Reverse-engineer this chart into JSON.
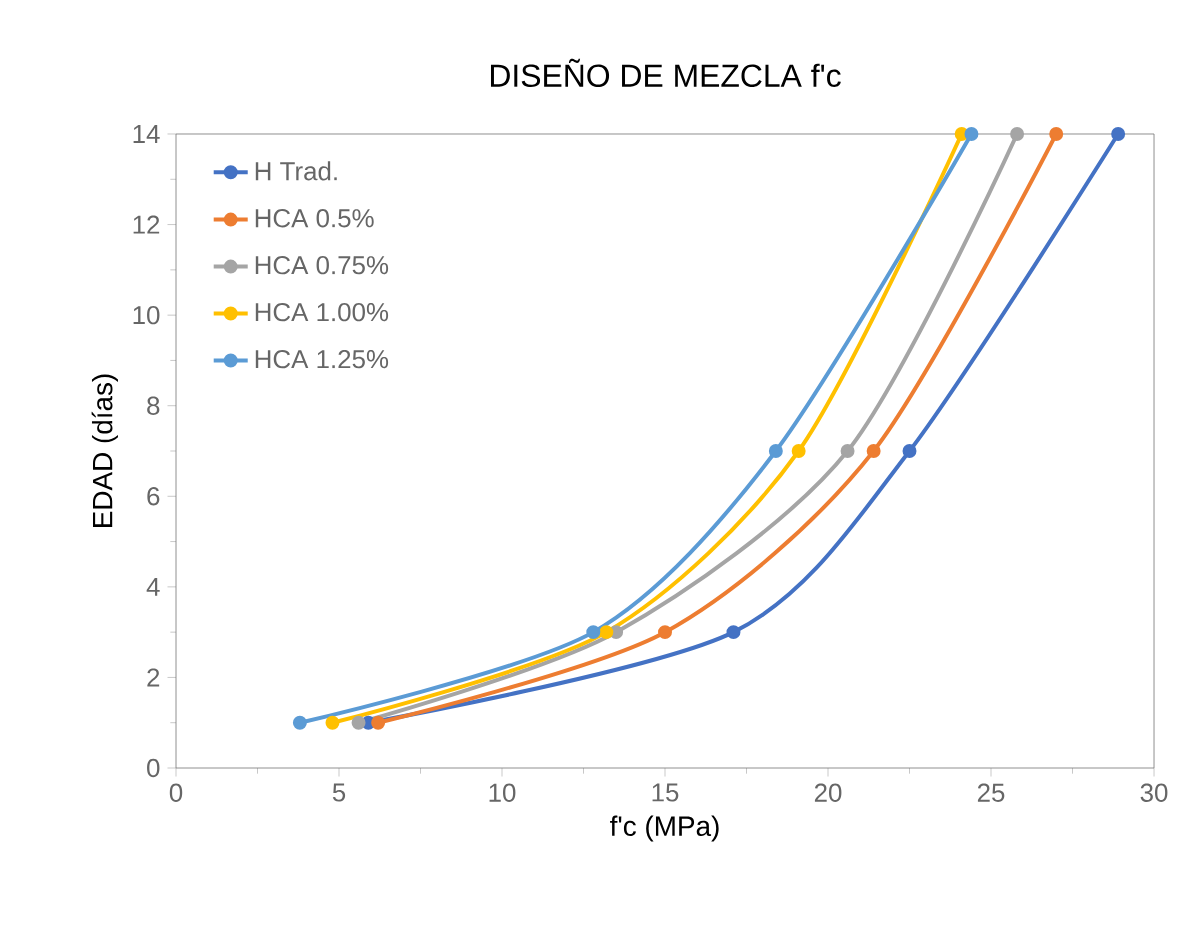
{
  "chart_data": {
    "type": "line",
    "title": "DISEÑO DE MEZCLA  f'c",
    "xlabel": "f'c (MPa)",
    "ylabel": "EDAD (días)",
    "xlim": [
      0,
      30
    ],
    "xticks": [
      0,
      5,
      10,
      15,
      20,
      25,
      30
    ],
    "ylim": [
      0,
      14
    ],
    "yticks": [
      0,
      2,
      4,
      6,
      8,
      10,
      12,
      14
    ],
    "grid": false,
    "legend": "top left",
    "marker": "circle",
    "series": [
      {
        "name": "H Trad.",
        "color": "#4472c4",
        "x": [
          5.9,
          17.1,
          22.5,
          28.9
        ],
        "values": [
          1,
          3,
          7,
          14
        ]
      },
      {
        "name": "HCA 0.5%",
        "color": "#ed7d31",
        "x": [
          6.2,
          15.0,
          21.4,
          27.0
        ],
        "values": [
          1,
          3,
          7,
          14
        ]
      },
      {
        "name": "HCA 0.75%",
        "color": "#a5a5a5",
        "x": [
          5.6,
          13.5,
          20.6,
          25.8
        ],
        "values": [
          1,
          3,
          7,
          14
        ]
      },
      {
        "name": "HCA 1.00%",
        "color": "#ffc000",
        "x": [
          4.8,
          13.2,
          19.1,
          24.1
        ],
        "values": [
          1,
          3,
          7,
          14
        ]
      },
      {
        "name": "HCA 1.25%",
        "color": "#5b9bd5",
        "x": [
          3.8,
          12.8,
          18.4,
          24.4
        ],
        "values": [
          1,
          3,
          7,
          14
        ]
      }
    ]
  }
}
